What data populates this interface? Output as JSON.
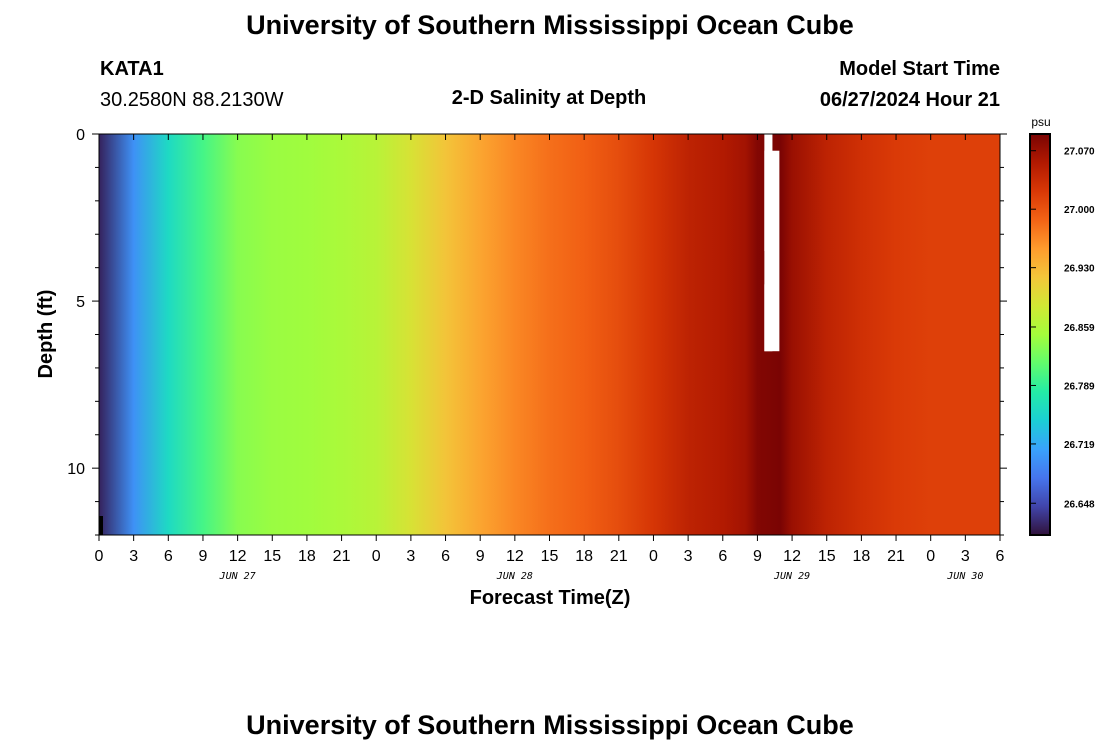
{
  "header": {
    "title": "University of Southern Mississippi Ocean Cube",
    "station": "KATA1",
    "location": "30.2580N  88.2130W",
    "subtitle": "2-D Salinity at Depth",
    "model_start_label": "Model Start Time",
    "model_start_value": "06/27/2024 Hour 21"
  },
  "footer": {
    "title": "University of Southern Mississippi Ocean Cube"
  },
  "chart_data": {
    "type": "heatmap",
    "title": "2-D Salinity at Depth",
    "xlabel": "Forecast Time(Z)",
    "ylabel": "Depth (ft)",
    "x_unit": "hours since 06/27/2024 00Z",
    "xlim": [
      0,
      78
    ],
    "ylim": [
      12,
      0
    ],
    "x_ticks": [
      0,
      3,
      6,
      9,
      12,
      15,
      18,
      21,
      24,
      27,
      30,
      33,
      36,
      39,
      42,
      45,
      48,
      51,
      54,
      57,
      60,
      63,
      66,
      69,
      72,
      75,
      78
    ],
    "x_tick_labels": [
      "0",
      "3",
      "6",
      "9",
      "12",
      "15",
      "18",
      "21",
      "0",
      "3",
      "6",
      "9",
      "12",
      "15",
      "18",
      "21",
      "0",
      "3",
      "6",
      "9",
      "12",
      "15",
      "18",
      "21",
      "0",
      "3",
      "6"
    ],
    "y_ticks": [
      0,
      5,
      10
    ],
    "y_tick_labels": [
      "0",
      "5",
      "10"
    ],
    "day_labels": [
      {
        "hour": 12,
        "label": "JUN 27"
      },
      {
        "hour": 36,
        "label": "JUN 28"
      },
      {
        "hour": 60,
        "label": "JUN 29"
      },
      {
        "hour": 75,
        "label": "JUN 30"
      }
    ],
    "colorbar": {
      "unit": "psu",
      "min": 26.61,
      "max": 27.09,
      "ticks": [
        26.648,
        26.719,
        26.789,
        26.859,
        26.93,
        27.0,
        27.07
      ],
      "tick_labels": [
        "26.648",
        "26.719",
        "26.789",
        "26.859",
        "26.930",
        "27.000",
        "27.070"
      ],
      "colors": [
        "#30123b",
        "#4145ab",
        "#4675ed",
        "#39a2fc",
        "#1bcfd4",
        "#24eca6",
        "#61fc6c",
        "#a4fc3b",
        "#d1e834",
        "#f3c63a",
        "#fe9b2d",
        "#f36315",
        "#d93806",
        "#b11901",
        "#7a0403"
      ]
    },
    "time_profile": [
      {
        "hour": 0,
        "value": 26.62
      },
      {
        "hour": 3,
        "value": 26.7
      },
      {
        "hour": 6,
        "value": 26.76
      },
      {
        "hour": 9,
        "value": 26.8
      },
      {
        "hour": 12,
        "value": 26.835
      },
      {
        "hour": 15,
        "value": 26.845
      },
      {
        "hour": 18,
        "value": 26.848
      },
      {
        "hour": 21,
        "value": 26.855
      },
      {
        "hour": 24,
        "value": 26.865
      },
      {
        "hour": 27,
        "value": 26.89
      },
      {
        "hour": 30,
        "value": 26.92
      },
      {
        "hour": 33,
        "value": 26.945
      },
      {
        "hour": 36,
        "value": 26.965
      },
      {
        "hour": 39,
        "value": 26.98
      },
      {
        "hour": 42,
        "value": 26.99
      },
      {
        "hour": 45,
        "value": 27.005
      },
      {
        "hour": 48,
        "value": 27.025
      },
      {
        "hour": 51,
        "value": 27.045
      },
      {
        "hour": 54,
        "value": 27.055
      },
      {
        "hour": 56,
        "value": 27.065
      },
      {
        "hour": 57,
        "value": 27.085
      },
      {
        "hour": 59,
        "value": 27.09
      },
      {
        "hour": 60,
        "value": 27.07
      },
      {
        "hour": 63,
        "value": 27.045
      },
      {
        "hour": 66,
        "value": 27.03
      },
      {
        "hour": 69,
        "value": 27.02
      },
      {
        "hour": 72,
        "value": 27.015
      },
      {
        "hour": 75,
        "value": 27.015
      },
      {
        "hour": 78,
        "value": 27.015
      }
    ],
    "missing_data": [
      {
        "x0": 57.6,
        "x1": 58.3,
        "y0": 0,
        "y1": 3.5
      },
      {
        "x0": 57.6,
        "x1": 58.9,
        "y0": 0.5,
        "y1": 6.5
      },
      {
        "x0": 57.6,
        "x1": 58.3,
        "y0": 4.5,
        "y1": 6.5
      }
    ]
  }
}
